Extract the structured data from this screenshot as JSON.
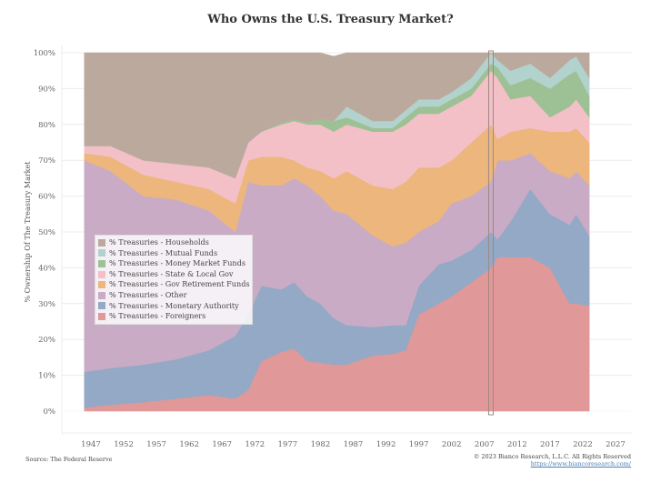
{
  "chart_data": {
    "type": "area",
    "stacked": true,
    "title": "Who Owns the U.S. Treasury Market?",
    "xlabel": "",
    "ylabel": "% Ownership Of The Treasury Market",
    "ylim": [
      0,
      100
    ],
    "xlim": [
      1946,
      2027
    ],
    "yticks": [
      "0%",
      "10%",
      "20%",
      "30%",
      "40%",
      "50%",
      "60%",
      "70%",
      "80%",
      "90%",
      "100%"
    ],
    "xticks": [
      "1947",
      "1952",
      "1957",
      "1962",
      "1967",
      "1972",
      "1977",
      "1982",
      "1987",
      "1992",
      "1997",
      "2002",
      "2007",
      "2012",
      "2017",
      "2022",
      "2027"
    ],
    "grid": true,
    "legend_position": "center-left",
    "x": [
      1946,
      1950,
      1955,
      1960,
      1965,
      1969,
      1971,
      1973,
      1976,
      1978,
      1980,
      1982,
      1984,
      1986,
      1990,
      1993,
      1995,
      1997,
      2000,
      2002,
      2005,
      2008,
      2009,
      2011,
      2014,
      2017,
      2020,
      2021,
      2023
    ],
    "series": [
      {
        "name": "% Treasuries - Foreigners",
        "color": "#e09898",
        "values": [
          1,
          1.8,
          2.5,
          3.5,
          4.5,
          3.5,
          6,
          14,
          16.5,
          17.5,
          14,
          13.5,
          13,
          13,
          15.5,
          16,
          17,
          27,
          30,
          32,
          36,
          40,
          43,
          43,
          43,
          40,
          30,
          30,
          29.5
        ]
      },
      {
        "name": "% Treasuries - Monetary Authority",
        "color": "#94a9c6",
        "values": [
          10,
          10.2,
          10.5,
          11,
          12.5,
          17.5,
          21,
          21,
          17.5,
          18.5,
          18,
          16.5,
          13,
          11,
          8,
          8,
          7,
          8,
          11,
          10,
          9,
          10,
          5,
          10,
          19,
          15,
          22,
          25,
          19.5
        ]
      },
      {
        "name": "% Treasuries - Other",
        "color": "#c9abc5",
        "values": [
          59,
          55,
          47,
          44.5,
          39,
          29,
          37,
          28,
          29,
          29,
          31,
          30,
          30,
          31,
          25.5,
          22,
          23,
          15,
          12,
          16,
          15,
          14,
          22,
          17,
          10,
          12,
          13,
          12,
          14
        ]
      },
      {
        "name": "% Treasuries - Gov Retirement Funds",
        "color": "#ecb67d",
        "values": [
          2,
          4,
          6,
          5,
          6,
          8,
          6,
          8,
          8,
          5,
          5,
          7,
          9,
          12,
          14,
          16,
          17,
          18,
          15,
          12,
          15,
          16,
          6,
          8,
          7,
          11,
          13,
          12,
          12
        ]
      },
      {
        "name": "% Treasuries - State & Local Gov",
        "color": "#f4c0c8",
        "values": [
          2,
          3,
          4,
          5,
          6,
          7,
          5,
          7,
          9,
          11,
          12,
          13,
          13,
          13,
          15,
          16,
          16,
          15,
          15,
          15,
          13,
          15,
          17,
          9,
          9,
          4,
          7,
          8,
          7
        ]
      },
      {
        "name": "% Treasuries - Money Market Funds",
        "color": "#9dc194",
        "values": [
          0,
          0,
          0,
          0,
          0,
          0,
          0,
          0,
          0.5,
          0.5,
          0.5,
          1.5,
          3,
          2,
          1,
          1,
          2,
          2,
          2,
          2,
          2,
          2,
          3,
          4,
          5,
          8,
          9,
          8,
          6
        ]
      },
      {
        "name": "% Treasuries - Mutual Funds",
        "color": "#b2d2cd",
        "values": [
          0,
          0,
          0,
          0,
          0,
          0,
          0,
          0,
          0,
          0,
          0,
          0,
          0,
          3,
          2,
          2,
          2,
          2,
          2,
          2,
          3,
          3,
          2,
          4,
          4,
          3,
          4,
          4,
          5
        ]
      },
      {
        "name": "% Treasuries - Households",
        "color": "#bca99e",
        "values": [
          26,
          26,
          30,
          31,
          32,
          35,
          25,
          22,
          19.5,
          18.5,
          19.5,
          18.5,
          18,
          15,
          19,
          19,
          16,
          13,
          13,
          11,
          7,
          0,
          2,
          5,
          3,
          7,
          2,
          1,
          7
        ]
      }
    ],
    "legend_order": [
      "% Treasuries - Households",
      "% Treasuries - Mutual Funds",
      "% Treasuries - Money Market Funds",
      "% Treasuries - State & Local Gov",
      "% Treasuries - Gov Retirement Funds",
      "% Treasuries - Other",
      "% Treasuries - Monetary Authority",
      "% Treasuries - Foreigners"
    ],
    "annotation_marker_year": 2008
  },
  "footer": {
    "source": "Source: The Federal Reserve",
    "copyright": "© 2023 Bianco Research, L.L.C. All Rights Reserved",
    "url": "https://www.biancoresearch.com/"
  }
}
